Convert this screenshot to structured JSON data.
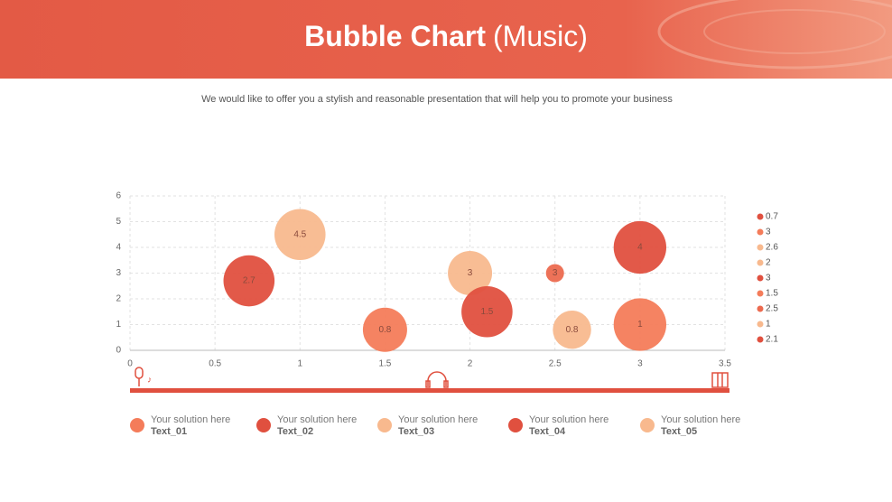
{
  "header": {
    "title": "Bubble Chart",
    "title_suffix": "(Music)"
  },
  "subtitle": "We would like to offer you a stylish and reasonable presentation that will help you to promote your business",
  "chart_data": {
    "type": "bubble",
    "xlim": [
      0,
      3.5
    ],
    "ylim": [
      0,
      6
    ],
    "xticks": [
      0,
      0.5,
      1,
      1.5,
      2,
      2.5,
      3,
      3.5
    ],
    "yticks": [
      0,
      1,
      2,
      3,
      4,
      5,
      6
    ],
    "grid": true,
    "legend": "right",
    "series": [
      {
        "name": "0.7",
        "color": "#e0503f",
        "x": [
          0.7
        ],
        "values": [
          2.7
        ],
        "sizes": [
          8
        ]
      },
      {
        "name": "3",
        "color": "#f47c5a",
        "x": [
          3
        ],
        "values": [
          1
        ],
        "sizes": [
          8.5
        ]
      },
      {
        "name": "2.6",
        "color": "#f8b98e",
        "x": [
          2.6
        ],
        "values": [
          0.8
        ],
        "sizes": [
          4.5
        ]
      },
      {
        "name": "2",
        "color": "#f8b98e",
        "x": [
          2
        ],
        "values": [
          3
        ],
        "sizes": [
          6
        ]
      },
      {
        "name": "3",
        "color": "#e0503f",
        "x": [
          3
        ],
        "values": [
          4
        ],
        "sizes": [
          8.5
        ]
      },
      {
        "name": "1.5",
        "color": "#f47c5a",
        "x": [
          1.5
        ],
        "values": [
          0.8
        ],
        "sizes": [
          6
        ]
      },
      {
        "name": "2.5",
        "color": "#ec6a4f",
        "x": [
          2.5
        ],
        "values": [
          3
        ],
        "sizes": [
          1
        ]
      },
      {
        "name": "1",
        "color": "#f8b98e",
        "x": [
          1
        ],
        "values": [
          4.5
        ],
        "sizes": [
          8
        ]
      },
      {
        "name": "2.1",
        "color": "#e0503f",
        "x": [
          2.1
        ],
        "values": [
          1.5
        ],
        "sizes": [
          8
        ]
      }
    ]
  },
  "footer_items": [
    {
      "text": "Your solution here",
      "label": "Text_01",
      "color": "#f47c5a"
    },
    {
      "text": "Your solution here",
      "label": "Text_02",
      "color": "#e0503f"
    },
    {
      "text": "Your solution here",
      "label": "Text_03",
      "color": "#f8b98e"
    },
    {
      "text": "Your solution here",
      "label": "Text_04",
      "color": "#e0503f"
    },
    {
      "text": "Your solution here",
      "label": "Text_05",
      "color": "#f8b98e"
    }
  ]
}
